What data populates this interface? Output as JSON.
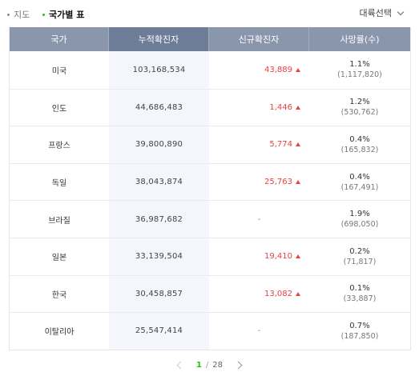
{
  "tabs": {
    "map": "지도",
    "table": "국가별 표"
  },
  "continent_select": "대륙선택",
  "headers": {
    "country": "국가",
    "total": "누적확진자",
    "new": "신규확진자",
    "death": "사망률(수)"
  },
  "rows": [
    {
      "country": "미국",
      "total": "103,168,534",
      "new": "43,889",
      "death_rate": "1.1%",
      "death_count": "(1,117,820)"
    },
    {
      "country": "인도",
      "total": "44,686,483",
      "new": "1,446",
      "death_rate": "1.2%",
      "death_count": "(530,762)"
    },
    {
      "country": "프랑스",
      "total": "39,800,890",
      "new": "5,774",
      "death_rate": "0.4%",
      "death_count": "(165,832)"
    },
    {
      "country": "독일",
      "total": "38,043,874",
      "new": "25,763",
      "death_rate": "0.4%",
      "death_count": "(167,491)"
    },
    {
      "country": "브라질",
      "total": "36,987,682",
      "new": "-",
      "death_rate": "1.9%",
      "death_count": "(698,050)"
    },
    {
      "country": "일본",
      "total": "33,139,504",
      "new": "19,410",
      "death_rate": "0.2%",
      "death_count": "(71,817)"
    },
    {
      "country": "한국",
      "total": "30,458,857",
      "new": "13,082",
      "death_rate": "0.1%",
      "death_count": "(33,887)"
    },
    {
      "country": "이탈리아",
      "total": "25,547,414",
      "new": "-",
      "death_rate": "0.7%",
      "death_count": "(187,850)"
    }
  ],
  "pager": {
    "current": "1",
    "separator": "/",
    "total": "28"
  },
  "colors": {
    "header_bg": "#8a96ab",
    "header_highlight": "#6d7d98",
    "increase": "#e8413e",
    "active_green": "#1ec800"
  }
}
